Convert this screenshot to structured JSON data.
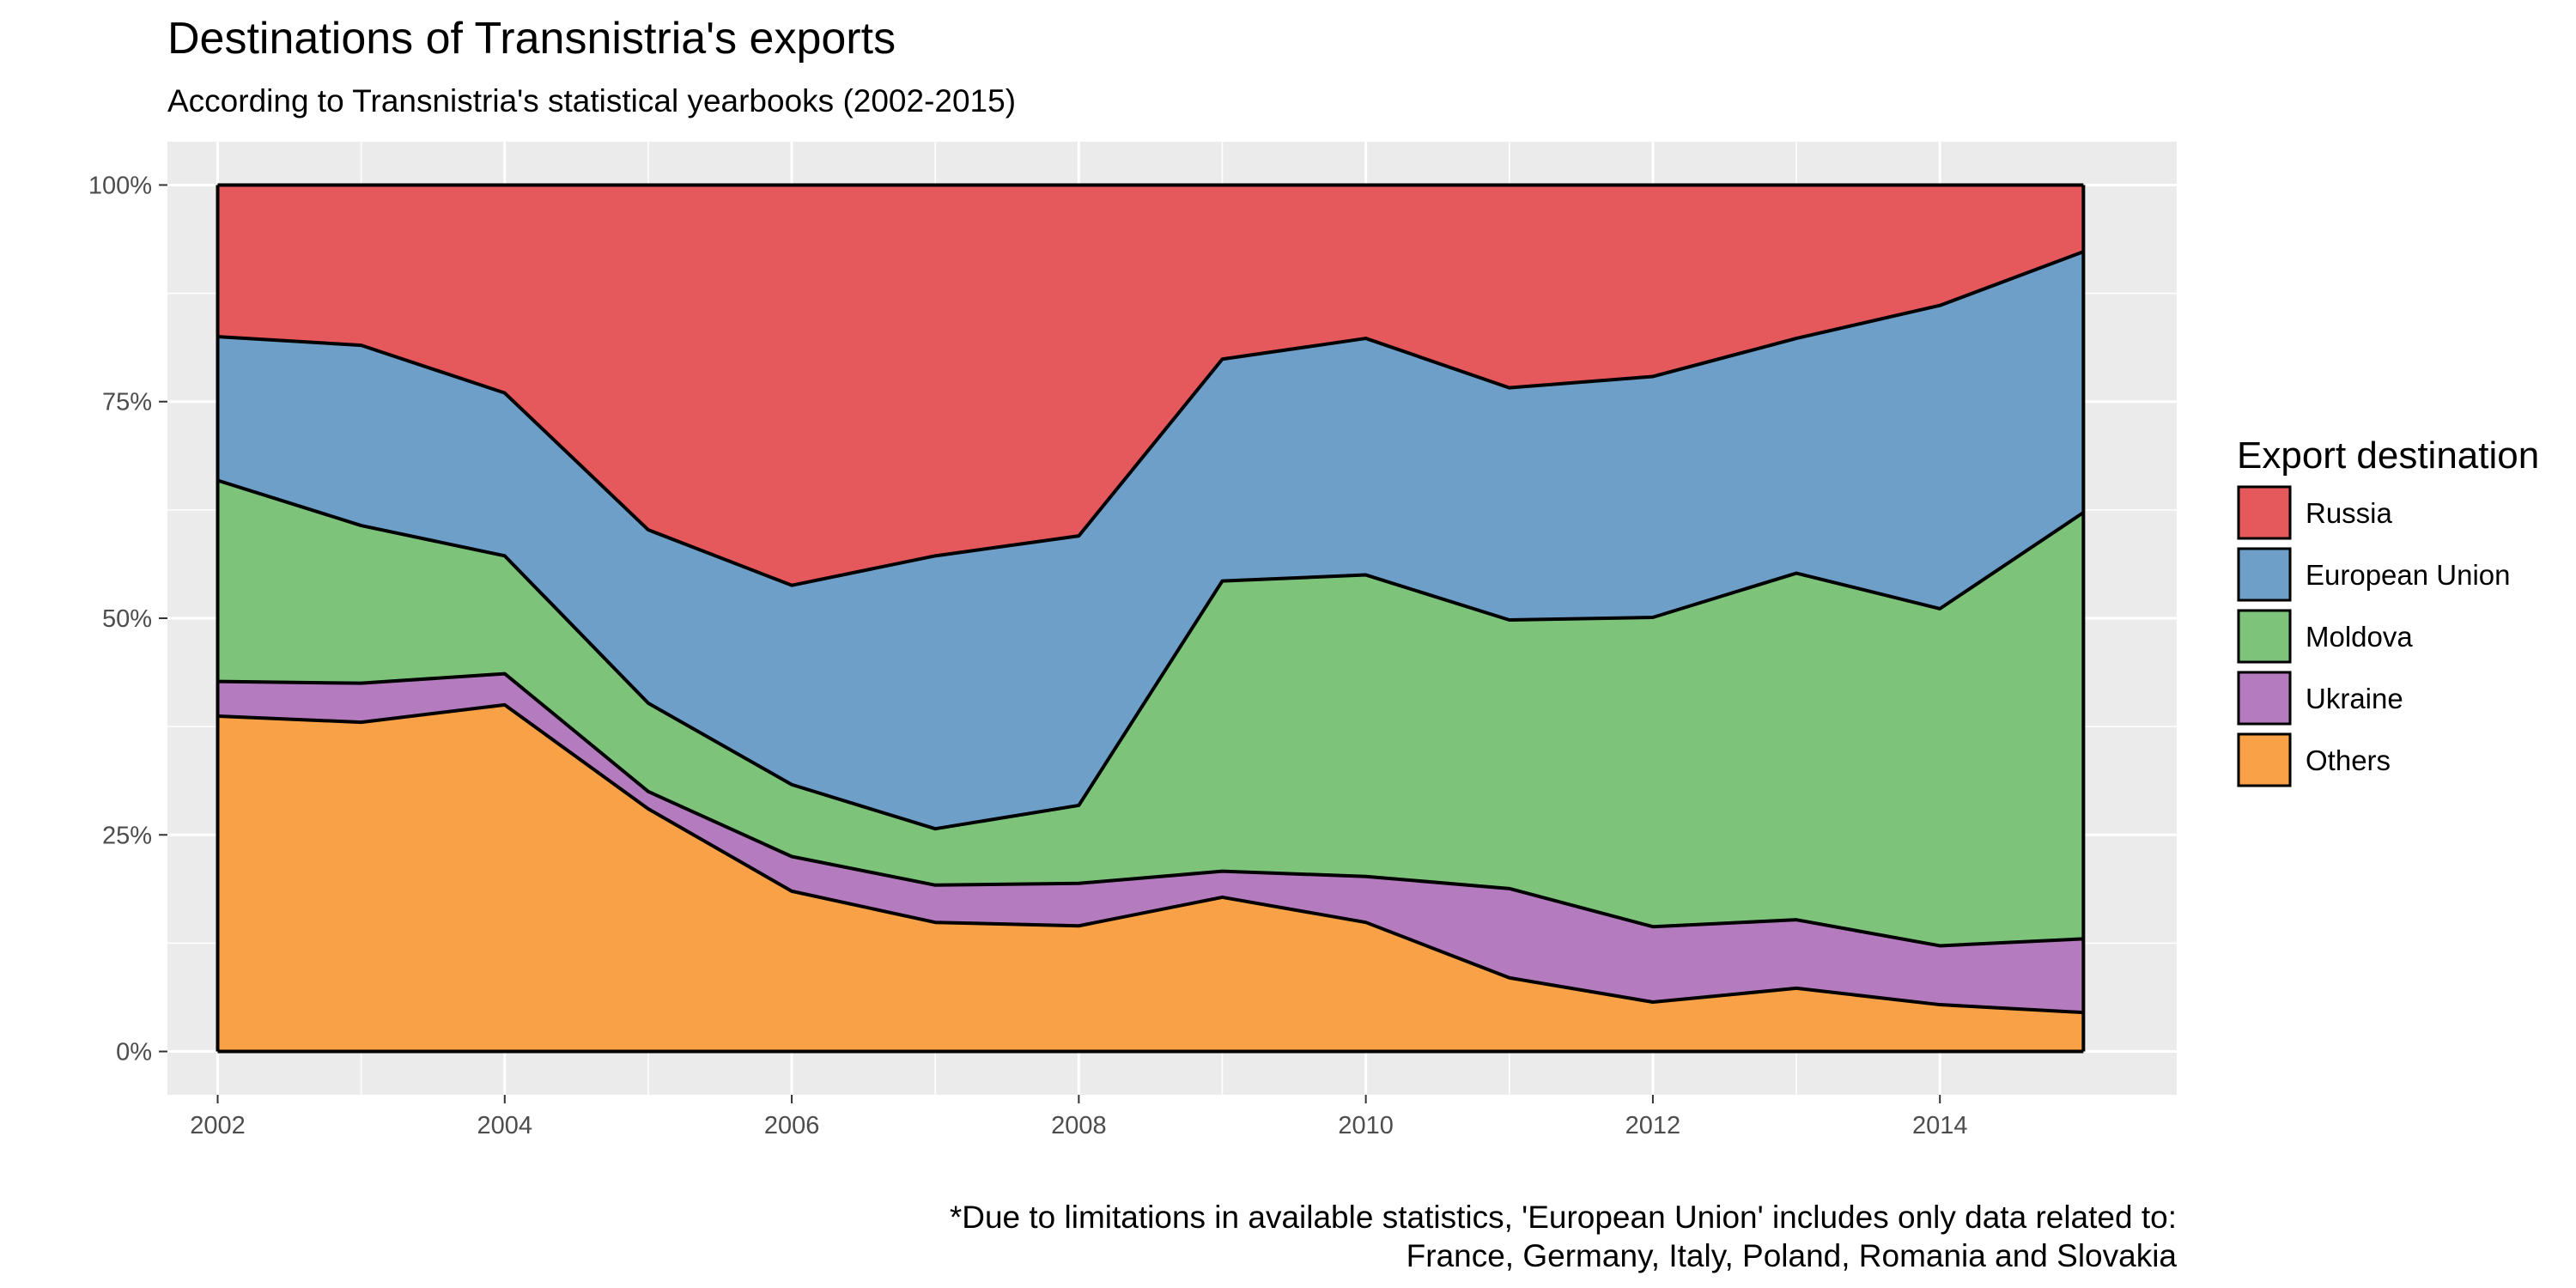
{
  "chart_data": {
    "type": "area",
    "stacked": true,
    "normalized": true,
    "title": "Destinations of Transnistria's exports",
    "subtitle": "According to Transnistria's statistical yearbooks (2002-2015)",
    "caption_lines": [
      "*Due to limitations in available statistics, 'European Union' includes only data related to:",
      "France, Germany, Italy, Poland, Romania and Slovakia"
    ],
    "legend_title": "Export destination",
    "legend_position": "right",
    "grid": true,
    "x": [
      2002,
      2003,
      2004,
      2005,
      2006,
      2007,
      2008,
      2009,
      2010,
      2011,
      2012,
      2013,
      2014,
      2015
    ],
    "x_ticks": [
      2002,
      2004,
      2006,
      2008,
      2010,
      2012,
      2014
    ],
    "xlim": [
      2001.65,
      2015.65
    ],
    "ylim": [
      -0.05,
      1.05
    ],
    "y_ticks": [
      0,
      0.25,
      0.5,
      0.75,
      1
    ],
    "y_tick_labels": [
      "0%",
      "25%",
      "50%",
      "75%",
      "100%"
    ],
    "series": [
      {
        "name": "Others",
        "color": "#F8A146",
        "values": [
          38.7,
          38.0,
          40.0,
          28.0,
          18.5,
          14.9,
          14.5,
          17.8,
          14.9,
          8.5,
          5.7,
          7.3,
          5.4,
          4.5
        ]
      },
      {
        "name": "Ukraine",
        "color": "#B47CBF",
        "values": [
          4.0,
          4.5,
          3.6,
          2.0,
          4.0,
          4.3,
          4.9,
          3.0,
          5.3,
          10.3,
          8.7,
          7.9,
          6.8,
          8.5
        ]
      },
      {
        "name": "Moldova",
        "color": "#7DC47A",
        "values": [
          23.2,
          18.2,
          13.6,
          10.2,
          8.3,
          6.5,
          9.0,
          33.5,
          34.8,
          31.0,
          35.7,
          40.0,
          38.9,
          49.2
        ]
      },
      {
        "name": "European Union",
        "color": "#6D9FC9",
        "values": [
          16.6,
          20.8,
          18.8,
          20.0,
          23.0,
          31.5,
          31.1,
          25.6,
          27.3,
          26.8,
          27.8,
          27.1,
          35.0,
          30.1
        ]
      },
      {
        "name": "Russia",
        "color": "#E5595D",
        "values": [
          17.5,
          18.5,
          24.0,
          39.8,
          46.2,
          42.8,
          40.5,
          20.1,
          17.7,
          23.4,
          22.1,
          17.7,
          13.9,
          7.7
        ]
      }
    ],
    "legend_order": [
      "Russia",
      "European Union",
      "Moldova",
      "Ukraine",
      "Others"
    ],
    "panel_background": "#EBEBEB",
    "gridline_color": "#FFFFFF"
  }
}
